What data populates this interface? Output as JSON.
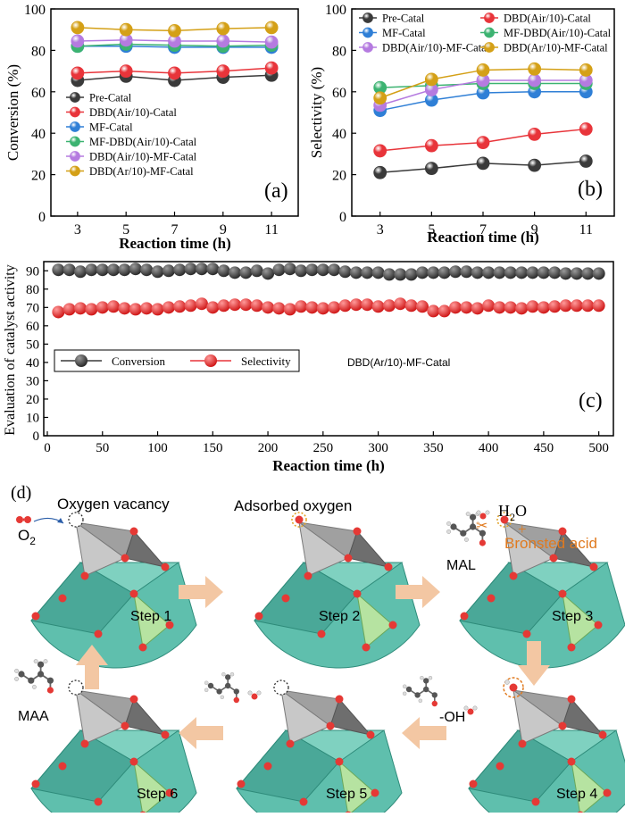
{
  "chart_data": [
    {
      "id": "a",
      "type": "line",
      "panel_label": "(a)",
      "xlabel": "Reaction time (h)",
      "ylabel": "Conversion (%)",
      "x": [
        3,
        5,
        7,
        9,
        11
      ],
      "xticks": [
        "3",
        "5",
        "7",
        "9",
        "11"
      ],
      "ylim": [
        0,
        100
      ],
      "yticks": [
        "0",
        "20",
        "40",
        "60",
        "80",
        "100"
      ],
      "legend_position": "center-left",
      "series": [
        {
          "name": "Pre-Catal",
          "color": "#3a3a3a",
          "values": [
            65.5,
            67.5,
            65.5,
            67,
            68
          ]
        },
        {
          "name": "DBD(Air/10)-Catal",
          "color": "#e8343a",
          "values": [
            69,
            70,
            69,
            70,
            71.5
          ]
        },
        {
          "name": "MF-Catal",
          "color": "#2f7fd6",
          "values": [
            82,
            82,
            81.5,
            81.5,
            81.5
          ]
        },
        {
          "name": "MF-DBD(Air/10)-Catal",
          "color": "#3cb371",
          "values": [
            82,
            83,
            82.5,
            82,
            82.5
          ]
        },
        {
          "name": "DBD(Air/10)-MF-Catal",
          "color": "#b57be0",
          "values": [
            84.5,
            85,
            84.5,
            84.5,
            84
          ]
        },
        {
          "name": "DBD(Ar/10)-MF-Catal",
          "color": "#d4a017",
          "values": [
            91,
            90,
            89.5,
            90.5,
            91
          ]
        }
      ]
    },
    {
      "id": "b",
      "type": "line",
      "panel_label": "(b)",
      "xlabel": "Reaction time (h)",
      "ylabel": "Selectivity (%)",
      "x": [
        3,
        5,
        7,
        9,
        11
      ],
      "xticks": [
        "3",
        "5",
        "7",
        "9",
        "11"
      ],
      "ylim": [
        0,
        100
      ],
      "yticks": [
        "0",
        "20",
        "40",
        "60",
        "80",
        "100"
      ],
      "legend_position": "top",
      "series": [
        {
          "name": "Pre-Catal",
          "color": "#3a3a3a",
          "values": [
            21,
            23,
            25.5,
            24.5,
            26.5
          ]
        },
        {
          "name": "DBD(Air/10)-Catal",
          "color": "#e8343a",
          "values": [
            31.5,
            34,
            35.5,
            39.5,
            42
          ]
        },
        {
          "name": "MF-Catal",
          "color": "#2f7fd6",
          "values": [
            51,
            56,
            59.5,
            60,
            60
          ]
        },
        {
          "name": "MF-DBD(Air/10)-Catal",
          "color": "#3cb371",
          "values": [
            62,
            63,
            64,
            64,
            64
          ]
        },
        {
          "name": "DBD(Air/10)-MF-Catal",
          "color": "#b57be0",
          "values": [
            53.5,
            61,
            65.5,
            65.5,
            65.5
          ]
        },
        {
          "name": "DBD(Ar/10)-MF-Catal",
          "color": "#d4a017",
          "values": [
            57,
            66,
            70.5,
            71,
            70.5
          ]
        }
      ]
    },
    {
      "id": "c",
      "type": "line",
      "panel_label": "(c)",
      "annotation": "DBD(Ar/10)-MF-Catal",
      "xlabel": "Reaction time (h)",
      "ylabel": "Evaluation of catalyst activity",
      "xlim": [
        0,
        510
      ],
      "xticks": [
        "0",
        "50",
        "100",
        "150",
        "200",
        "250",
        "300",
        "350",
        "400",
        "450",
        "500"
      ],
      "ylim": [
        0,
        95
      ],
      "yticks": [
        "0",
        "10",
        "20",
        "30",
        "40",
        "50",
        "60",
        "70",
        "80",
        "90"
      ],
      "x": [
        10,
        20,
        30,
        40,
        50,
        60,
        70,
        80,
        90,
        100,
        110,
        120,
        130,
        140,
        150,
        160,
        170,
        180,
        190,
        200,
        210,
        220,
        230,
        240,
        250,
        260,
        270,
        280,
        290,
        300,
        310,
        320,
        330,
        340,
        350,
        360,
        370,
        380,
        390,
        400,
        410,
        420,
        430,
        440,
        450,
        460,
        470,
        480,
        490,
        500
      ],
      "series": [
        {
          "name": "Conversion",
          "color": "#3a3a3a",
          "values": [
            90.5,
            90.5,
            89.5,
            90.5,
            90.5,
            90.5,
            90.5,
            91,
            90.5,
            89.5,
            90,
            90.5,
            91,
            91,
            91,
            90,
            89,
            89,
            90,
            88.5,
            90.5,
            91,
            90,
            90.5,
            90.5,
            90.5,
            89.5,
            89,
            89,
            89,
            88,
            88,
            88,
            89,
            89,
            89,
            89.5,
            89.5,
            89,
            89,
            89,
            89,
            89,
            89,
            89,
            89,
            88.5,
            88.5,
            88.5,
            88.5
          ]
        },
        {
          "name": "Selectivity",
          "color": "#e8343a",
          "values": [
            67.5,
            69,
            69.5,
            69,
            70,
            70.5,
            69.5,
            69,
            69.5,
            69,
            70,
            70.5,
            71,
            72,
            70,
            71,
            71.5,
            71.5,
            71,
            70,
            69.5,
            69,
            70.5,
            70,
            69.5,
            70,
            71,
            71.5,
            71.5,
            70.5,
            71,
            72,
            71,
            70.5,
            68,
            68,
            70,
            70,
            69.5,
            71,
            70,
            70,
            69.5,
            70.5,
            70,
            70.5,
            71,
            71,
            71,
            71
          ]
        }
      ]
    }
  ],
  "diagram": {
    "panel_label": "(d)",
    "labels": {
      "oxygen_vacancy": "Oxygen vacancy",
      "adsorbed_oxygen": "Adsorbed oxygen",
      "o2": "O",
      "o2_sub": "2",
      "h2o": "H",
      "h2o_sub": "2",
      "h2o_o": "O",
      "plus": "+",
      "bronsted_acid": "Bronsted acid",
      "mal": "MAL",
      "maa": "MAA",
      "oh": "-OH"
    },
    "steps": [
      "Step 1",
      "Step 2",
      "Step 3",
      "Step 4",
      "Step 5",
      "Step 6"
    ],
    "colors": {
      "teal": "#5fbfad",
      "gray": "#a9a9a9",
      "oxygen": "#e53935",
      "arrow": "#f3c7a3",
      "accent": "#e07a1f"
    }
  }
}
